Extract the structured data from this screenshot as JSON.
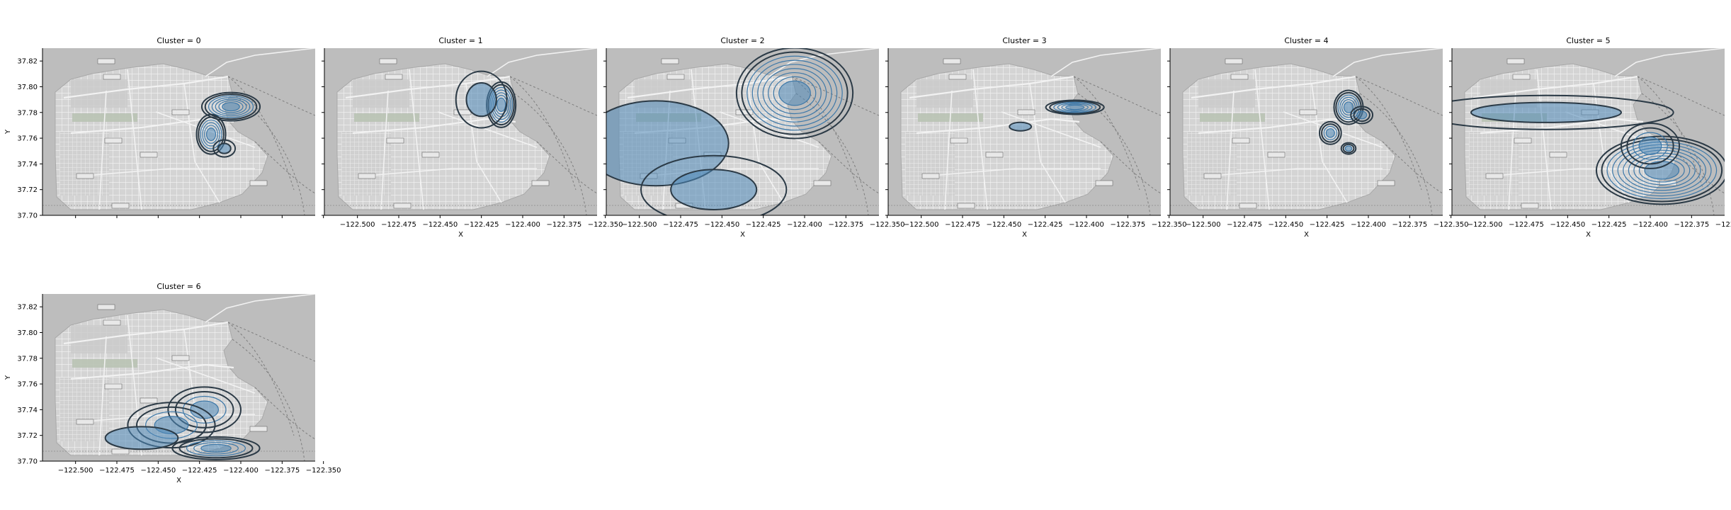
{
  "figure": {
    "facet_title_prefix": "Cluster = ",
    "xlabel": "X",
    "ylabel": "Y",
    "background": "basemap of San Francisco (grayscale street map)"
  },
  "chart_data": {
    "type": "kde-contour-facets",
    "facet_variable": "Cluster",
    "xlim": [
      -122.52,
      -122.355
    ],
    "ylim": [
      37.7,
      37.83
    ],
    "xticks": [
      -122.5,
      -122.475,
      -122.45,
      -122.425,
      -122.4,
      -122.375,
      -122.35
    ],
    "xtick_labels": [
      "−122.500",
      "−122.475",
      "−122.450",
      "−122.425",
      "−122.400",
      "−122.375",
      "−122.350"
    ],
    "yticks": [
      37.7,
      37.72,
      37.74,
      37.76,
      37.78,
      37.8,
      37.82
    ],
    "ytick_labels": [
      "37.70",
      "37.72",
      "37.74",
      "37.76",
      "37.78",
      "37.80",
      "37.82"
    ],
    "grid": false,
    "contour_colors": {
      "outer": "#2b3a46",
      "inner": "#3d78a8",
      "fill": "#4f88b8"
    },
    "facets": [
      {
        "cluster": 0,
        "show_xticks": false,
        "show_yticks": true,
        "hotspots": [
          {
            "x": -122.406,
            "y": 37.7845,
            "sx": 0.008,
            "sy": 0.005,
            "rings": 7
          },
          {
            "x": -122.418,
            "y": 37.763,
            "sx": 0.004,
            "sy": 0.007,
            "rings": 6
          },
          {
            "x": -122.41,
            "y": 37.752,
            "sx": 0.003,
            "sy": 0.003,
            "rings": 2
          }
        ]
      },
      {
        "cluster": 1,
        "show_xticks": true,
        "show_yticks": false,
        "hotspots": [
          {
            "x": -122.413,
            "y": 37.786,
            "sx": 0.004,
            "sy": 0.008,
            "rings": 7
          },
          {
            "x": -122.425,
            "y": 37.79,
            "sx": 0.007,
            "sy": 0.01,
            "rings": 2
          }
        ]
      },
      {
        "cluster": 2,
        "show_xticks": true,
        "show_yticks": false,
        "hotspots": [
          {
            "x": -122.406,
            "y": 37.795,
            "sx": 0.016,
            "sy": 0.016,
            "rings": 9
          },
          {
            "x": -122.49,
            "y": 37.756,
            "sx": 0.02,
            "sy": 0.015,
            "rings": 1
          },
          {
            "x": -122.455,
            "y": 37.72,
            "sx": 0.02,
            "sy": 0.012,
            "rings": 2
          }
        ]
      },
      {
        "cluster": 3,
        "show_xticks": true,
        "show_yticks": false,
        "hotspots": [
          {
            "x": -122.407,
            "y": 37.784,
            "sx": 0.008,
            "sy": 0.0025,
            "rings": 6
          },
          {
            "x": -122.44,
            "y": 37.769,
            "sx": 0.003,
            "sy": 0.0015,
            "rings": 1
          }
        ]
      },
      {
        "cluster": 4,
        "show_xticks": true,
        "show_yticks": false,
        "hotspots": [
          {
            "x": -122.412,
            "y": 37.784,
            "sx": 0.004,
            "sy": 0.006,
            "rings": 6
          },
          {
            "x": -122.404,
            "y": 37.778,
            "sx": 0.003,
            "sy": 0.003,
            "rings": 3
          },
          {
            "x": -122.423,
            "y": 37.764,
            "sx": 0.003,
            "sy": 0.004,
            "rings": 4
          },
          {
            "x": -122.412,
            "y": 37.752,
            "sx": 0.002,
            "sy": 0.002,
            "rings": 3
          }
        ]
      },
      {
        "cluster": 5,
        "show_xticks": true,
        "show_yticks": false,
        "hotspots": [
          {
            "x": -122.393,
            "y": 37.735,
            "sx": 0.018,
            "sy": 0.012,
            "rings": 10
          },
          {
            "x": -122.4,
            "y": 37.754,
            "sx": 0.008,
            "sy": 0.008,
            "rings": 4
          },
          {
            "x": -122.463,
            "y": 37.78,
            "sx": 0.035,
            "sy": 0.006,
            "rings": 2
          }
        ]
      },
      {
        "cluster": 6,
        "show_xticks": true,
        "show_yticks": true,
        "hotspots": [
          {
            "x": -122.422,
            "y": 37.74,
            "sx": 0.01,
            "sy": 0.008,
            "rings": 4
          },
          {
            "x": -122.442,
            "y": 37.728,
            "sx": 0.012,
            "sy": 0.008,
            "rings": 4
          },
          {
            "x": -122.415,
            "y": 37.71,
            "sx": 0.012,
            "sy": 0.004,
            "rings": 5
          },
          {
            "x": -122.46,
            "y": 37.718,
            "sx": 0.01,
            "sy": 0.004,
            "rings": 1
          }
        ]
      }
    ]
  }
}
